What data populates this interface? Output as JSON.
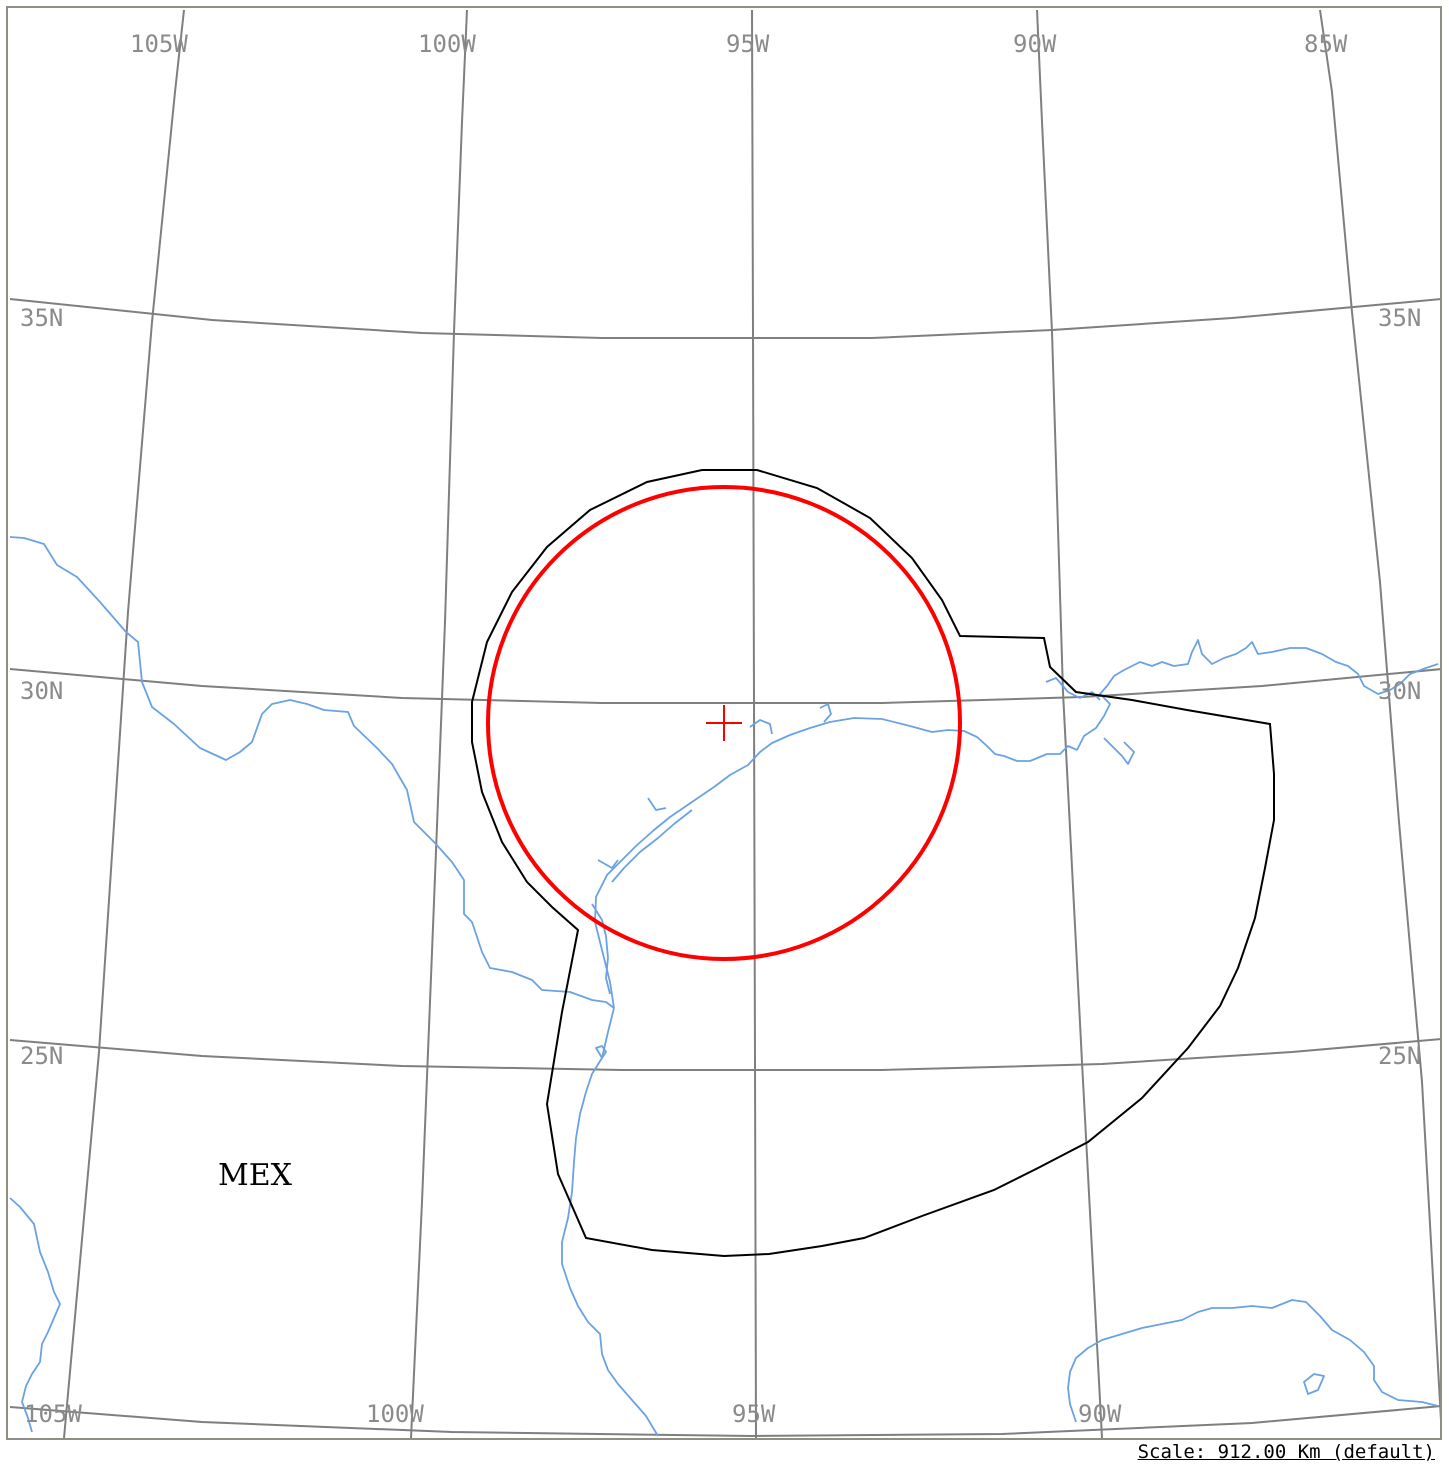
{
  "map": {
    "top_lon_labels": [
      "105W",
      "100W",
      "95W",
      "90W",
      "85W"
    ],
    "bottom_lon_labels": [
      "105W",
      "100W",
      "95W",
      "90W"
    ],
    "left_lat_labels": [
      "35N",
      "30N",
      "25N"
    ],
    "right_lat_labels": [
      "35N",
      "30N",
      "25N"
    ],
    "country_label": "MEX",
    "colors": {
      "graticule": "#7f7f7f",
      "coastline": "#6aa2e4",
      "area_outline": "#000000",
      "range_circle": "#ff0000",
      "center_marker": "#ff0000"
    },
    "icons": {
      "center_marker": "red-crosshair-icon"
    }
  },
  "footer": {
    "scale_text": "Scale: 912.00 Km (default)"
  }
}
